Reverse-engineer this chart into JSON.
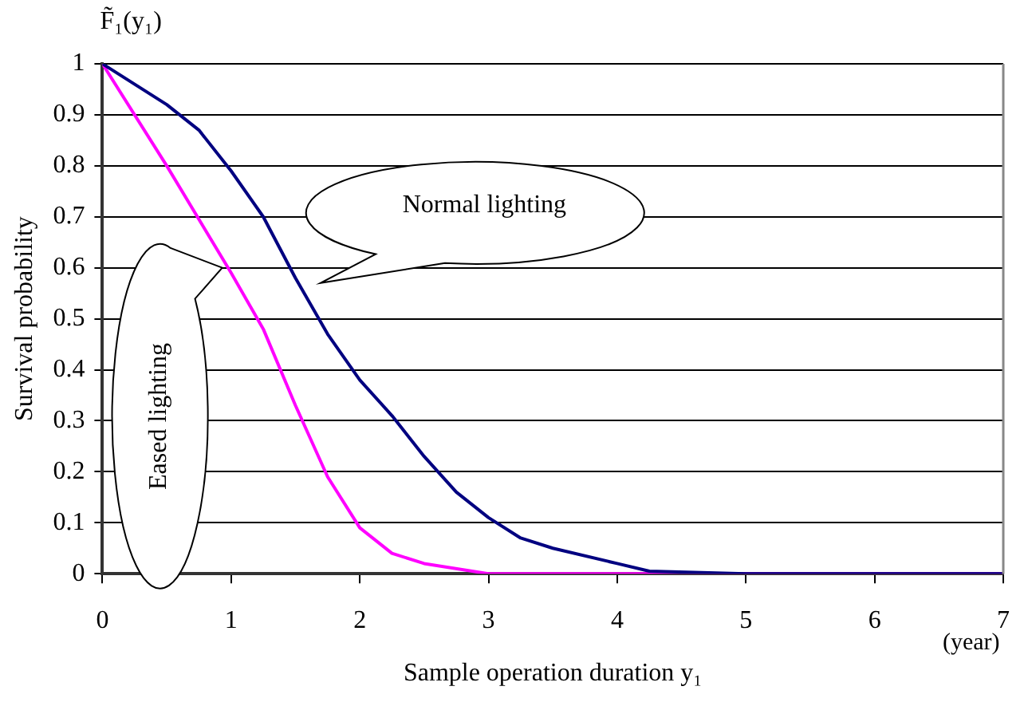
{
  "chart_data": {
    "type": "line",
    "xlabel": "Sample operation duration y₁",
    "ylabel": "Survival probability",
    "annotations": [
      "F̃₁(y₁)",
      "(year)"
    ],
    "xlim": [
      0,
      7
    ],
    "xticks": [
      0,
      1,
      2,
      3,
      4,
      5,
      6,
      7
    ],
    "ylim": [
      0,
      1
    ],
    "yticks": [
      0,
      0.1,
      0.2,
      0.3,
      0.4,
      0.5,
      0.6,
      0.7,
      0.8,
      0.9,
      1
    ],
    "grid": "y",
    "legend": false,
    "marker": "none",
    "line_style": "solid",
    "series": [
      {
        "name": "Normal lighting",
        "color": "#000080",
        "x": [
          0,
          0.5,
          0.75,
          1,
          1.25,
          1.5,
          1.75,
          2,
          2.25,
          2.5,
          2.75,
          3,
          3.25,
          3.5,
          4,
          4.25,
          5,
          7
        ],
        "values": [
          1,
          0.92,
          0.87,
          0.79,
          0.7,
          0.58,
          0.47,
          0.38,
          0.31,
          0.23,
          0.16,
          0.11,
          0.07,
          0.05,
          0.02,
          0.005,
          0,
          0
        ]
      },
      {
        "name": "Eased lighting",
        "color": "#ff00ff",
        "x": [
          0,
          0.5,
          1,
          1.25,
          1.5,
          1.75,
          2,
          2.25,
          2.5,
          3,
          3.5,
          4,
          7
        ],
        "values": [
          1,
          0.8,
          0.59,
          0.48,
          0.33,
          0.19,
          0.09,
          0.04,
          0.02,
          0,
          0,
          0,
          0
        ]
      }
    ]
  }
}
